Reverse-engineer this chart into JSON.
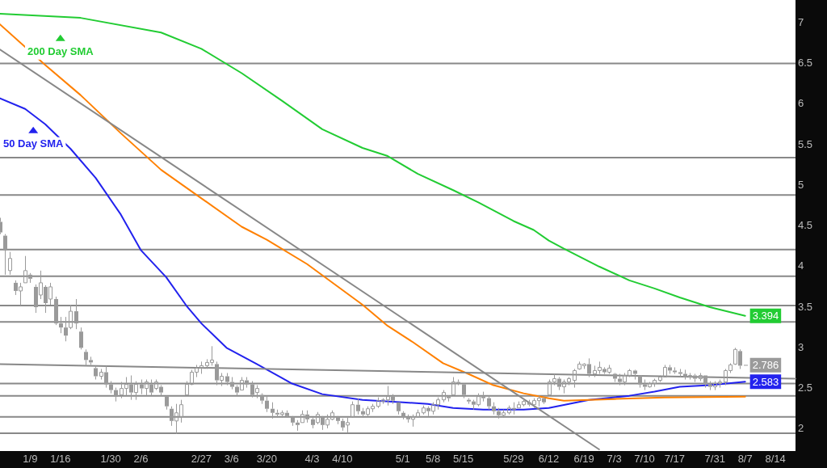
{
  "chart_data": {
    "type": "candlestick",
    "color": "#9a9a9a",
    "categories": [
      null,
      null,
      null,
      null,
      null,
      null,
      "1/9",
      null,
      null,
      null,
      null,
      null,
      "1/16",
      null,
      null,
      null,
      null,
      null,
      null,
      null,
      null,
      null,
      "1/30",
      null,
      null,
      null,
      null,
      null,
      "2/6",
      null,
      null,
      null,
      null,
      null,
      null,
      null,
      null,
      null,
      null,
      null,
      "2/27",
      null,
      null,
      null,
      null,
      null,
      "3/6",
      null,
      null,
      null,
      null,
      null,
      null,
      "3/20",
      null,
      null,
      null,
      null,
      null,
      null,
      null,
      null,
      "4/3",
      null,
      null,
      null,
      null,
      null,
      "4/10",
      null,
      null,
      null,
      null,
      null,
      null,
      null,
      null,
      null,
      null,
      null,
      "5/1",
      null,
      null,
      null,
      null,
      null,
      "5/8",
      null,
      null,
      null,
      null,
      null,
      "5/15",
      null,
      null,
      null,
      null,
      null,
      null,
      null,
      null,
      null,
      "5/29",
      null,
      null,
      null,
      null,
      null,
      null,
      "6/12",
      null,
      null,
      null,
      null,
      null,
      null,
      "6/19",
      null,
      null,
      null,
      null,
      null,
      "7/3",
      null,
      null,
      null,
      null,
      null,
      "7/10",
      null,
      null,
      null,
      null,
      null,
      "7/17",
      null,
      null,
      null,
      null,
      null,
      null,
      null,
      "7/31",
      null,
      null,
      null,
      null,
      null,
      "8/7",
      null,
      null,
      null,
      null,
      null,
      "8/14",
      null,
      null,
      null,
      null
    ],
    "ohlc": [
      [
        4.55,
        4.6,
        4.4,
        4.42
      ],
      [
        4.38,
        4.4,
        3.9,
        4.2
      ],
      [
        3.95,
        4.18,
        3.9,
        4.1
      ],
      [
        3.8,
        3.83,
        3.65,
        3.7
      ],
      [
        3.7,
        3.8,
        3.52,
        3.75
      ],
      [
        3.8,
        4.13,
        3.8,
        3.95
      ],
      [
        3.9,
        3.92,
        3.8,
        3.85
      ],
      [
        3.75,
        3.78,
        3.43,
        3.5
      ],
      [
        3.65,
        3.95,
        3.6,
        3.8
      ],
      [
        3.75,
        3.77,
        3.43,
        3.55
      ],
      [
        3.6,
        3.8,
        3.53,
        3.75
      ],
      [
        3.6,
        3.63,
        3.28,
        3.3
      ],
      [
        3.3,
        3.38,
        3.18,
        3.25
      ],
      [
        3.25,
        3.38,
        3.08,
        3.15
      ],
      [
        3.25,
        3.53,
        3.23,
        3.45
      ],
      [
        3.45,
        3.6,
        3.23,
        3.3
      ],
      [
        3.2,
        3.25,
        2.98,
        3
      ],
      [
        2.95,
        2.98,
        2.78,
        2.85
      ],
      [
        2.85,
        2.89,
        2.79,
        2.82
      ],
      [
        2.75,
        2.78,
        2.61,
        2.65
      ],
      [
        2.65,
        2.74,
        2.61,
        2.7
      ],
      [
        2.7,
        2.78,
        2.51,
        2.55
      ],
      [
        2.55,
        2.59,
        2.44,
        2.48
      ],
      [
        2.48,
        2.51,
        2.34,
        2.4
      ],
      [
        2.42,
        2.58,
        2.38,
        2.5
      ],
      [
        2.5,
        2.64,
        2.41,
        2.55
      ],
      [
        2.55,
        2.66,
        2.36,
        2.45
      ],
      [
        2.45,
        2.59,
        2.36,
        2.55
      ],
      [
        2.55,
        2.61,
        2.43,
        2.5
      ],
      [
        2.5,
        2.61,
        2.41,
        2.58
      ],
      [
        2.55,
        2.61,
        2.41,
        2.45
      ],
      [
        2.5,
        2.61,
        2.48,
        2.58
      ],
      [
        2.52,
        2.54,
        2.41,
        2.45
      ],
      [
        2.4,
        2.41,
        2.24,
        2.28
      ],
      [
        2.25,
        2.28,
        2.04,
        2.1
      ],
      [
        2.1,
        2.31,
        1.94,
        2.2
      ],
      [
        2.15,
        2.36,
        2.08,
        2.3
      ],
      [
        2.42,
        2.59,
        2.41,
        2.55
      ],
      [
        2.55,
        2.73,
        2.54,
        2.7
      ],
      [
        2.7,
        2.79,
        2.64,
        2.75
      ],
      [
        2.75,
        2.83,
        2.68,
        2.78
      ],
      [
        2.78,
        2.86,
        2.74,
        2.82
      ],
      [
        2.82,
        3.02,
        2.78,
        2.85
      ],
      [
        2.8,
        2.83,
        2.54,
        2.6
      ],
      [
        2.6,
        2.69,
        2.53,
        2.65
      ],
      [
        2.65,
        2.69,
        2.54,
        2.58
      ],
      [
        2.58,
        2.64,
        2.49,
        2.52
      ],
      [
        2.52,
        2.54,
        2.41,
        2.45
      ],
      [
        2.48,
        2.64,
        2.48,
        2.6
      ],
      [
        2.6,
        2.64,
        2.51,
        2.55
      ],
      [
        2.55,
        2.59,
        2.39,
        2.42
      ],
      [
        2.45,
        2.54,
        2.38,
        2.5
      ],
      [
        2.42,
        2.44,
        2.31,
        2.35
      ],
      [
        2.35,
        2.41,
        2.21,
        2.25
      ],
      [
        2.25,
        2.33,
        2.13,
        2.2
      ],
      [
        2.2,
        2.24,
        2.14,
        2.18
      ],
      [
        2.18,
        2.23,
        2.14,
        2.2
      ],
      [
        2.2,
        2.23,
        2.14,
        2.16
      ],
      [
        2.15,
        2.16,
        2.04,
        2.08
      ],
      [
        2.08,
        2.11,
        1.98,
        2.05
      ],
      [
        2.08,
        2.23,
        2.08,
        2.18
      ],
      [
        2.18,
        2.23,
        2.08,
        2.12
      ],
      [
        2.12,
        2.14,
        2.01,
        2.05
      ],
      [
        2.08,
        2.21,
        2.06,
        2.18
      ],
      [
        2.15,
        2.16,
        1.99,
        2.05
      ],
      [
        2.05,
        2.18,
        2.01,
        2.12
      ],
      [
        2.12,
        2.23,
        2.11,
        2.2
      ],
      [
        2.15,
        2.16,
        2.06,
        2.1
      ],
      [
        2.1,
        2.13,
        1.98,
        2.02
      ],
      [
        2.05,
        2.14,
        1.96,
        2.08
      ],
      [
        2.15,
        2.34,
        2.14,
        2.3
      ],
      [
        2.3,
        2.38,
        2.18,
        2.22
      ],
      [
        2.22,
        2.26,
        2.14,
        2.18
      ],
      [
        2.18,
        2.28,
        2.16,
        2.25
      ],
      [
        2.25,
        2.31,
        2.21,
        2.28
      ],
      [
        2.28,
        2.39,
        2.26,
        2.35
      ],
      [
        2.34,
        2.38,
        2.31,
        2.36
      ],
      [
        2.36,
        2.53,
        2.29,
        2.4
      ],
      [
        2.4,
        2.43,
        2.31,
        2.35
      ],
      [
        2.33,
        2.33,
        2.18,
        2.22
      ],
      [
        2.2,
        2.22,
        2.12,
        2.15
      ],
      [
        2.15,
        2.18,
        2.08,
        2.12
      ],
      [
        2.12,
        2.18,
        2.03,
        2.15
      ],
      [
        2.15,
        2.24,
        2.14,
        2.2
      ],
      [
        2.2,
        2.29,
        2.18,
        2.26
      ],
      [
        2.26,
        2.28,
        2.16,
        2.22
      ],
      [
        2.22,
        2.33,
        2.18,
        2.3
      ],
      [
        2.3,
        2.39,
        2.24,
        2.36
      ],
      [
        2.36,
        2.48,
        2.33,
        2.45
      ],
      [
        2.4,
        2.41,
        2.34,
        2.38
      ],
      [
        2.42,
        2.64,
        2.41,
        2.58
      ],
      [
        2.58,
        2.61,
        2.54,
        2.56
      ],
      [
        2.55,
        2.56,
        2.38,
        2.42
      ],
      [
        2.36,
        2.38,
        2.31,
        2.34
      ],
      [
        2.34,
        2.36,
        2.24,
        2.3
      ],
      [
        2.3,
        2.44,
        2.28,
        2.4
      ],
      [
        2.4,
        2.46,
        2.34,
        2.38
      ],
      [
        2.38,
        2.41,
        2.24,
        2.28
      ],
      [
        2.28,
        2.33,
        2.18,
        2.22
      ],
      [
        2.22,
        2.26,
        2.13,
        2.17
      ],
      [
        2.17,
        2.24,
        2.14,
        2.2
      ],
      [
        2.2,
        2.29,
        2.18,
        2.26
      ],
      [
        2.26,
        2.33,
        2.18,
        2.24
      ],
      [
        2.26,
        2.34,
        2.26,
        2.3
      ],
      [
        2.3,
        2.38,
        2.28,
        2.34
      ],
      [
        2.33,
        2.36,
        2.28,
        2.3
      ],
      [
        2.3,
        2.38,
        2.26,
        2.35
      ],
      [
        2.35,
        2.41,
        2.28,
        2.38
      ],
      [
        2.38,
        2.39,
        2.31,
        2.33
      ],
      [
        2.42,
        2.61,
        2.41,
        2.58
      ],
      [
        2.58,
        2.68,
        2.54,
        2.62
      ],
      [
        2.62,
        2.64,
        2.48,
        2.52
      ],
      [
        2.52,
        2.61,
        2.44,
        2.58
      ],
      [
        2.58,
        2.64,
        2.54,
        2.62
      ],
      [
        2.6,
        2.74,
        2.51,
        2.72
      ],
      [
        2.74,
        2.83,
        2.73,
        2.8
      ],
      [
        2.78,
        2.81,
        2.74,
        2.8
      ],
      [
        2.8,
        2.87,
        2.64,
        2.68
      ],
      [
        2.68,
        2.78,
        2.64,
        2.72
      ],
      [
        2.72,
        2.83,
        2.68,
        2.76
      ],
      [
        2.74,
        2.76,
        2.68,
        2.7
      ],
      [
        2.7,
        2.79,
        2.68,
        2.75
      ],
      [
        2.68,
        2.69,
        2.58,
        2.62
      ],
      [
        2.62,
        2.68,
        2.54,
        2.58
      ],
      [
        2.58,
        2.69,
        2.54,
        2.66
      ],
      [
        2.66,
        2.74,
        2.64,
        2.72
      ],
      [
        2.72,
        2.73,
        2.61,
        2.68
      ],
      [
        2.66,
        2.66,
        2.51,
        2.55
      ],
      [
        2.55,
        2.61,
        2.48,
        2.52
      ],
      [
        2.52,
        2.58,
        2.51,
        2.56
      ],
      [
        2.56,
        2.62,
        2.52,
        2.6
      ],
      [
        2.6,
        2.66,
        2.58,
        2.64
      ],
      [
        2.64,
        2.79,
        2.64,
        2.76
      ],
      [
        2.76,
        2.79,
        2.68,
        2.72
      ],
      [
        2.72,
        2.76,
        2.68,
        2.7
      ],
      [
        2.7,
        2.74,
        2.64,
        2.68
      ],
      [
        2.68,
        2.73,
        2.61,
        2.64
      ],
      [
        2.64,
        2.69,
        2.61,
        2.66
      ],
      [
        2.66,
        2.68,
        2.58,
        2.62
      ],
      [
        2.62,
        2.69,
        2.59,
        2.66
      ],
      [
        2.66,
        2.66,
        2.51,
        2.55
      ],
      [
        2.55,
        2.59,
        2.48,
        2.52
      ],
      [
        2.52,
        2.59,
        2.48,
        2.56
      ],
      [
        2.56,
        2.61,
        2.51,
        2.58
      ],
      [
        2.58,
        2.74,
        2.54,
        2.72
      ],
      [
        2.72,
        2.81,
        2.69,
        2.79
      ],
      [
        2.8,
        3,
        2.79,
        2.98
      ],
      [
        2.96,
        2.98,
        2.74,
        2.78
      ],
      [
        2.79,
        2.79,
        2.78,
        2.786
      ],
      null,
      null,
      null,
      null,
      null,
      null,
      null,
      null,
      null,
      null
    ],
    "ylim": [
      1.73,
      7.28
    ],
    "yticks": [
      2,
      2.5,
      3,
      3.5,
      4,
      4.5,
      5,
      5.5,
      6,
      6.5,
      7
    ],
    "series": [
      {
        "type": "line",
        "color": "#888888",
        "values": [
          6.67,
          null,
          null,
          null,
          null,
          null,
          null,
          null,
          null,
          null,
          null,
          null,
          null,
          null,
          null,
          null,
          null,
          null,
          null,
          null,
          null,
          null,
          null,
          null,
          null,
          null,
          null,
          null,
          null,
          null,
          null,
          null,
          null,
          null,
          null,
          null,
          null,
          null,
          null,
          null,
          null,
          null,
          null,
          null,
          null,
          null,
          null,
          null,
          null,
          null,
          null,
          null,
          null,
          null,
          null,
          null,
          null,
          null,
          null,
          null,
          null,
          null,
          null,
          null,
          null,
          null,
          null,
          null,
          null,
          null,
          null,
          null,
          null,
          null,
          null,
          null,
          null,
          null,
          null,
          null,
          null,
          null,
          null,
          null,
          null,
          null,
          null,
          null,
          null,
          null,
          null,
          null,
          null,
          null,
          null,
          null,
          null,
          null,
          null,
          null,
          null,
          null,
          null,
          null,
          null,
          null,
          null,
          null,
          null,
          null,
          null,
          null,
          null,
          null,
          null,
          null,
          null,
          null,
          null,
          1.75,
          null,
          null,
          null,
          null,
          null,
          null,
          null,
          null,
          null,
          null,
          null,
          null,
          null,
          null,
          null,
          null,
          null,
          null,
          null,
          null,
          null,
          null,
          null,
          null,
          null,
          null,
          null,
          null,
          null,
          null,
          null,
          null,
          null,
          null,
          null,
          null,
          null,
          null,
          null
        ]
      },
      {
        "type": "line",
        "color": "#888888",
        "values": [
          2.8,
          null,
          null,
          null,
          null,
          null,
          null,
          null,
          null,
          null,
          null,
          null,
          null,
          null,
          null,
          null,
          null,
          null,
          null,
          null,
          null,
          null,
          null,
          null,
          null,
          null,
          null,
          null,
          null,
          null,
          null,
          null,
          null,
          null,
          null,
          null,
          null,
          null,
          null,
          null,
          null,
          null,
          null,
          null,
          null,
          null,
          null,
          null,
          null,
          null,
          null,
          null,
          null,
          null,
          null,
          null,
          null,
          null,
          null,
          null,
          null,
          null,
          null,
          null,
          null,
          null,
          null,
          null,
          null,
          null,
          null,
          null,
          null,
          null,
          null,
          null,
          null,
          null,
          null,
          null,
          null,
          null,
          null,
          null,
          null,
          null,
          null,
          null,
          null,
          null,
          null,
          null,
          null,
          null,
          null,
          null,
          null,
          null,
          null,
          null,
          null,
          null,
          null,
          null,
          null,
          null,
          null,
          null,
          null,
          null,
          null,
          null,
          null,
          null,
          null,
          null,
          null,
          null,
          null,
          null,
          null,
          null,
          null,
          null,
          null,
          null,
          null,
          null,
          null,
          null,
          null,
          null,
          null,
          null,
          null,
          null,
          null,
          null,
          null,
          null,
          null,
          null,
          null,
          null,
          null,
          null,
          null,
          null,
          null,
          null,
          null,
          null,
          null,
          null,
          null,
          null,
          null,
          null,
          2.62
        ]
      },
      {
        "type": "line",
        "color": "#ff8000",
        "values": [
          6.98,
          null,
          null,
          null,
          null,
          null,
          null,
          null,
          null,
          6.48,
          null,
          null,
          null,
          null,
          null,
          null,
          6.11,
          null,
          null,
          null,
          null,
          null,
          null,
          null,
          5.64,
          null,
          null,
          null,
          null,
          null,
          null,
          null,
          5.19,
          null,
          null,
          null,
          null,
          null,
          null,
          null,
          4.84,
          null,
          null,
          null,
          null,
          null,
          null,
          null,
          4.49,
          null,
          null,
          null,
          null,
          4.33,
          null,
          null,
          null,
          null,
          null,
          null,
          null,
          4.03,
          null,
          null,
          null,
          null,
          null,
          null,
          null,
          null,
          null,
          null,
          3.53,
          null,
          null,
          null,
          null,
          3.27,
          null,
          null,
          null,
          null,
          3.07,
          null,
          null,
          null,
          null,
          null,
          2.81,
          null,
          null,
          null,
          null,
          2.68,
          null,
          null,
          null,
          null,
          2.54,
          null,
          null,
          null,
          null,
          null,
          2.44,
          null,
          null,
          null,
          null,
          2.38,
          null,
          null,
          2.35,
          null,
          null,
          null,
          null,
          null,
          null,
          null,
          null,
          null,
          2.37,
          null,
          null,
          null,
          null,
          null,
          null,
          null,
          null,
          null,
          2.39,
          null,
          null,
          null,
          null,
          null,
          null,
          null,
          null,
          null,
          null,
          null,
          null,
          null,
          null,
          null,
          2.4,
          null,
          null,
          null,
          null,
          null,
          null,
          null,
          null,
          null,
          null
        ]
      },
      {
        "type": "line",
        "name": "200 Day SMA",
        "color": "#22cc33",
        "values": [
          7.11,
          null,
          null,
          null,
          null,
          null,
          null,
          null,
          null,
          null,
          null,
          null,
          null,
          null,
          null,
          null,
          7.06,
          null,
          null,
          null,
          null,
          null,
          null,
          null,
          null,
          null,
          null,
          null,
          null,
          null,
          null,
          null,
          6.88,
          null,
          null,
          null,
          null,
          null,
          null,
          null,
          6.68,
          null,
          null,
          null,
          null,
          null,
          null,
          null,
          6.38,
          null,
          null,
          null,
          null,
          null,
          null,
          null,
          6.04,
          null,
          null,
          null,
          null,
          null,
          null,
          null,
          5.69,
          null,
          null,
          null,
          null,
          null,
          null,
          null,
          5.46,
          null,
          null,
          null,
          null,
          5.36,
          null,
          null,
          null,
          null,
          null,
          5.14,
          null,
          null,
          null,
          null,
          null,
          null,
          4.94,
          null,
          null,
          null,
          null,
          4.79,
          null,
          null,
          null,
          null,
          null,
          null,
          4.56,
          null,
          null,
          null,
          4.45,
          null,
          null,
          4.32,
          null,
          null,
          4.22,
          null,
          null,
          null,
          null,
          null,
          null,
          4,
          null,
          null,
          null,
          null,
          null,
          3.83,
          null,
          null,
          null,
          null,
          3.73,
          null,
          null,
          null,
          null,
          3.62,
          null,
          null,
          null,
          null,
          null,
          3.5,
          null,
          null,
          null,
          null,
          null,
          null,
          3.394,
          null,
          null,
          null,
          null,
          null,
          null,
          null,
          null,
          null,
          null
        ],
        "value_labels": [
          null,
          null,
          null,
          null,
          null,
          null,
          null,
          null,
          null,
          null,
          null,
          null,
          null,
          null,
          null,
          null,
          null,
          null,
          null,
          null,
          null,
          null,
          null,
          null,
          null,
          null,
          null,
          null,
          null,
          null,
          null,
          null,
          null,
          null,
          null,
          null,
          null,
          null,
          null,
          null,
          null,
          null,
          null,
          null,
          null,
          null,
          null,
          null,
          null,
          null,
          null,
          null,
          null,
          null,
          null,
          null,
          null,
          null,
          null,
          null,
          null,
          null,
          null,
          null,
          null,
          null,
          null,
          null,
          null,
          null,
          null,
          null,
          null,
          null,
          null,
          null,
          null,
          null,
          null,
          null,
          null,
          null,
          null,
          null,
          null,
          null,
          null,
          null,
          null,
          null,
          null,
          null,
          null,
          null,
          null,
          null,
          null,
          null,
          null,
          null,
          null,
          null,
          null,
          null,
          null,
          null,
          null,
          null,
          null,
          null,
          null,
          null,
          null,
          null,
          null,
          null,
          null,
          null,
          null,
          null,
          null,
          null,
          null,
          null,
          null,
          null,
          null,
          null,
          null,
          null,
          null,
          null,
          null,
          null,
          null,
          null,
          null,
          null,
          null,
          null,
          null,
          null,
          null,
          null,
          null,
          null,
          null,
          null,
          "3.394",
          null,
          null,
          null,
          null,
          null,
          null,
          null,
          null,
          null,
          null
        ]
      },
      {
        "type": "line",
        "name": "50 Day SMA",
        "color": "#2222ee",
        "values": [
          6.07,
          null,
          null,
          null,
          null,
          5.94,
          null,
          null,
          null,
          5.75,
          null,
          null,
          null,
          null,
          5.45,
          null,
          null,
          null,
          null,
          5.09,
          null,
          null,
          null,
          null,
          4.64,
          null,
          null,
          null,
          4.2,
          null,
          null,
          null,
          null,
          3.87,
          null,
          null,
          null,
          3.52,
          null,
          null,
          3.3,
          null,
          null,
          null,
          null,
          3,
          null,
          null,
          null,
          null,
          null,
          2.8,
          null,
          null,
          null,
          null,
          2.63,
          null,
          2.56,
          null,
          null,
          null,
          null,
          null,
          2.43,
          null,
          null,
          null,
          null,
          null,
          null,
          null,
          2.36,
          null,
          null,
          null,
          null,
          null,
          null,
          null,
          2.33,
          null,
          null,
          null,
          null,
          2.31,
          null,
          null,
          null,
          null,
          2.26,
          null,
          null,
          null,
          null,
          null,
          2.24,
          null,
          null,
          null,
          null,
          null,
          null,
          null,
          2.24,
          null,
          null,
          null,
          null,
          2.26,
          null,
          null,
          null,
          null,
          null,
          null,
          null,
          2.36,
          null,
          null,
          null,
          null,
          null,
          null,
          null,
          2.41,
          null,
          null,
          null,
          null,
          2.46,
          null,
          null,
          null,
          null,
          2.52,
          null,
          null,
          null,
          null,
          null,
          2.54,
          null,
          null,
          null,
          null,
          null,
          null,
          2.583,
          null,
          null,
          null,
          null,
          null,
          null,
          null,
          null,
          null,
          null
        ],
        "value_labels": [
          null,
          null,
          null,
          null,
          null,
          null,
          null,
          null,
          null,
          null,
          null,
          null,
          null,
          null,
          null,
          null,
          null,
          null,
          null,
          null,
          null,
          null,
          null,
          null,
          null,
          null,
          null,
          null,
          null,
          null,
          null,
          null,
          null,
          null,
          null,
          null,
          null,
          null,
          null,
          null,
          null,
          null,
          null,
          null,
          null,
          null,
          null,
          null,
          null,
          null,
          null,
          null,
          null,
          null,
          null,
          null,
          null,
          null,
          null,
          null,
          null,
          null,
          null,
          null,
          null,
          null,
          null,
          null,
          null,
          null,
          null,
          null,
          null,
          null,
          null,
          null,
          null,
          null,
          null,
          null,
          null,
          null,
          null,
          null,
          null,
          null,
          null,
          null,
          null,
          null,
          null,
          null,
          null,
          null,
          null,
          null,
          null,
          null,
          null,
          null,
          null,
          null,
          null,
          null,
          null,
          null,
          null,
          null,
          null,
          null,
          null,
          null,
          null,
          null,
          null,
          null,
          null,
          null,
          null,
          null,
          null,
          null,
          null,
          null,
          null,
          null,
          null,
          null,
          null,
          null,
          null,
          null,
          null,
          null,
          null,
          null,
          null,
          null,
          null,
          null,
          null,
          null,
          null,
          null,
          null,
          null,
          null,
          null,
          "2.583",
          null,
          null,
          null,
          null,
          null,
          null,
          null,
          null,
          null,
          null
        ]
      }
    ],
    "ref_lines": [
      {
        "axis": "y",
        "value": 6.5,
        "color": "#888888"
      },
      {
        "axis": "y",
        "value": 5.34,
        "color": "#888888"
      },
      {
        "axis": "y",
        "value": 4.88,
        "color": "#888888"
      },
      {
        "axis": "y",
        "value": 4.21,
        "color": "#888888"
      },
      {
        "axis": "y",
        "value": 3.88,
        "color": "#888888"
      },
      {
        "axis": "y",
        "value": 3.52,
        "color": "#888888"
      },
      {
        "axis": "y",
        "value": 3.32,
        "color": "#888888"
      },
      {
        "axis": "y",
        "value": 2.56,
        "color": "#888888"
      },
      {
        "axis": "y",
        "value": 2.41,
        "color": "#888888"
      },
      {
        "axis": "y",
        "value": 2.15,
        "color": "#888888"
      },
      {
        "axis": "y",
        "value": 1.95,
        "color": "#888888"
      }
    ],
    "annotations": [
      "2.786"
    ],
    "legend": "top left",
    "grid": false,
    "marker": "none"
  }
}
